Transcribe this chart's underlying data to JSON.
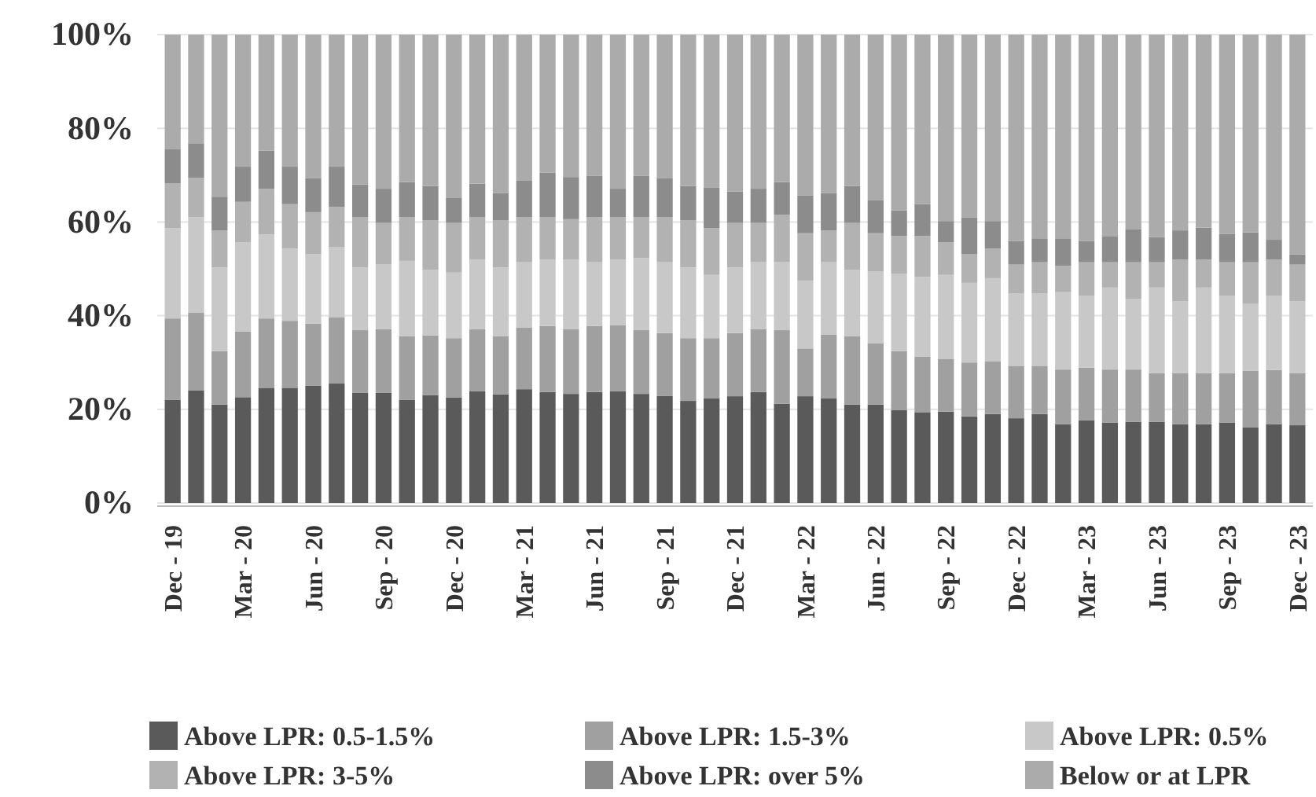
{
  "chart_data": {
    "type": "bar",
    "stacked": true,
    "grid": "y",
    "legend": "bottom",
    "categories": [
      "Dec - 19",
      null,
      null,
      "Mar - 20",
      null,
      null,
      "Jun - 20",
      null,
      null,
      "Sep - 20",
      null,
      null,
      "Dec - 20",
      null,
      null,
      "Mar - 21",
      null,
      null,
      "Jun - 21",
      null,
      null,
      "Sep - 21",
      null,
      null,
      "Dec - 21",
      null,
      null,
      "Mar - 22",
      null,
      null,
      "Jun - 22",
      null,
      null,
      "Sep - 22",
      null,
      null,
      "Dec - 22",
      null,
      null,
      "Mar - 23",
      null,
      null,
      "Jun - 23",
      null,
      null,
      "Sep - 23",
      null,
      null,
      "Dec - 23"
    ],
    "ylim": [
      0,
      100
    ],
    "yticks": [
      {
        "value": 0,
        "label": "0%"
      },
      {
        "value": 20,
        "label": "20%"
      },
      {
        "value": 40,
        "label": "40%"
      },
      {
        "value": 60,
        "label": "60%"
      },
      {
        "value": 80,
        "label": "80%"
      },
      {
        "value": 100,
        "label": "100%"
      }
    ],
    "series": [
      {
        "name": "Above LPR: 0.5-1.5%",
        "color": "#5a5a5a",
        "values": [
          22,
          24,
          21,
          22.6,
          24.6,
          24.6,
          25,
          25.5,
          23.5,
          23.5,
          22,
          23,
          22.5,
          23.9,
          23.2,
          24.3,
          23.7,
          23.3,
          23.7,
          23.9,
          23.3,
          22.9,
          21.8,
          22.4,
          22.8,
          23.7,
          21.2,
          22.8,
          22.4,
          21,
          21,
          19.8,
          19.4,
          19.5,
          18.5,
          19,
          18.1,
          19,
          16.8,
          17.7,
          17.2,
          17.3,
          17.3,
          16.8,
          16.8,
          17.2,
          16.2,
          16.8,
          16.6
        ]
      },
      {
        "name": "Above LPR: 1.5-3%",
        "color": "#a0a0a0",
        "values": [
          17.4,
          16.6,
          11.4,
          14,
          14.8,
          14.3,
          13.3,
          14.2,
          13.4,
          13.6,
          13.6,
          12.8,
          12.7,
          13.2,
          12.4,
          13.2,
          14.1,
          13.8,
          14.1,
          14.1,
          13.6,
          13.4,
          13.4,
          12.8,
          13.5,
          13.4,
          15.7,
          10.2,
          13.6,
          14.6,
          13.1,
          12.6,
          11.9,
          11.3,
          11.5,
          11.2,
          11.2,
          10.3,
          11.7,
          11.2,
          11.3,
          11.2,
          10.4,
          10.9,
          10.9,
          10.5,
          12,
          11.6,
          11.1
        ]
      },
      {
        "name": "Above LPR: 0.5%",
        "color": "#c8c8c8",
        "values": [
          19.3,
          20.4,
          17.9,
          19.1,
          17.9,
          15.4,
          14.8,
          14.9,
          13.4,
          13.8,
          16.1,
          14,
          14,
          14.9,
          14.7,
          13.9,
          14.2,
          14.9,
          13.6,
          14,
          15.4,
          15.1,
          15.1,
          13.5,
          14,
          14.3,
          14.5,
          14.5,
          15.4,
          14.2,
          15.3,
          16.6,
          17,
          17.9,
          17,
          17.8,
          15.4,
          15.4,
          16.5,
          15.3,
          17.5,
          15.1,
          18.3,
          15.4,
          18.3,
          16.5,
          14.3,
          15.8,
          15.4
        ]
      },
      {
        "name": "Above LPR: 3-5%",
        "color": "#b2b2b2",
        "values": [
          9.5,
          8.4,
          7.9,
          8.6,
          9.8,
          9.5,
          9,
          8.6,
          10.7,
          8.9,
          9.3,
          10.6,
          10.6,
          9,
          10.1,
          9.6,
          9,
          8.6,
          9.6,
          9,
          8.7,
          9.6,
          10.1,
          10,
          9.5,
          8.4,
          10.1,
          10.1,
          6.8,
          10,
          8.2,
          8,
          8.7,
          7,
          6.1,
          6.3,
          6.2,
          6.7,
          5.6,
          7.2,
          5.4,
          7.8,
          5.4,
          8.9,
          6,
          7.2,
          8.9,
          7.8,
          7.8
        ]
      },
      {
        "name": "Above LPR: over 5%",
        "color": "#8c8c8c",
        "values": [
          7.3,
          7.4,
          7.2,
          7.5,
          8.1,
          8,
          7.3,
          8.6,
          7,
          7.3,
          7.5,
          7.3,
          5.3,
          7.2,
          5.8,
          7.8,
          9.5,
          9,
          8.9,
          6.1,
          8.9,
          8.4,
          7.3,
          8.6,
          6.7,
          7.3,
          7,
          8.1,
          8,
          7.9,
          7.1,
          5.5,
          6.8,
          4.5,
          7.9,
          5.9,
          5,
          5.1,
          5.9,
          4.5,
          5.6,
          7,
          5.4,
          6.2,
          6.8,
          6,
          6.4,
          4.2,
          2.2
        ]
      },
      {
        "name": "Below or at LPR",
        "color": "#ababab",
        "values": [
          24.5,
          23.2,
          34.6,
          28.2,
          24.8,
          28.2,
          30.6,
          28.2,
          32,
          32.9,
          31.5,
          32.3,
          34.9,
          31.8,
          33.8,
          31.2,
          29.5,
          30.4,
          30.1,
          32.9,
          30.1,
          30.6,
          32.3,
          32.7,
          33.5,
          32.9,
          31.5,
          34.3,
          33.8,
          32.3,
          35.3,
          37.5,
          36.2,
          39.8,
          39,
          39.8,
          44.1,
          43.5,
          43.5,
          44.1,
          43,
          41.6,
          43.2,
          41.8,
          41.2,
          42.6,
          42.2,
          43.8,
          46.9
        ]
      }
    ]
  }
}
